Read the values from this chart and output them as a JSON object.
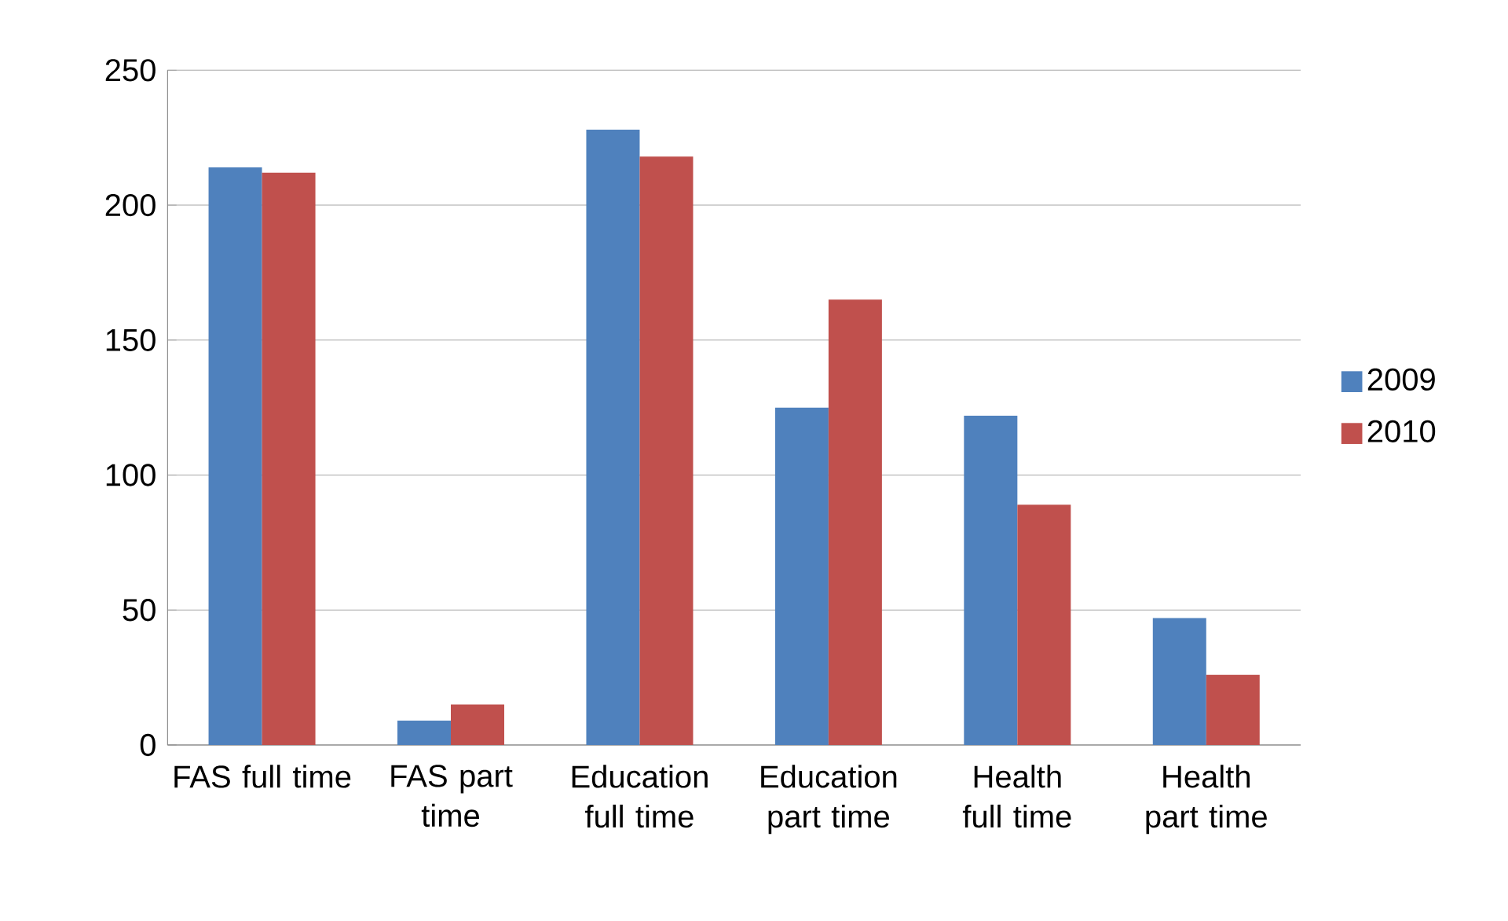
{
  "chart_data": {
    "type": "bar",
    "categories": [
      "FAS full time",
      "FAS part time",
      "Education full time",
      "Education part time",
      "Health full time",
      "Health part time"
    ],
    "series": [
      {
        "name": "2009",
        "color": "#4f81bd",
        "values": [
          214,
          9,
          228,
          125,
          122,
          47
        ]
      },
      {
        "name": "2010",
        "color": "#c0504d",
        "values": [
          212,
          15,
          218,
          165,
          89,
          26
        ]
      }
    ],
    "ylim": [
      0,
      250
    ],
    "yticks": [
      0,
      50,
      100,
      150,
      200,
      250
    ],
    "grid": "y",
    "legend": "right"
  }
}
